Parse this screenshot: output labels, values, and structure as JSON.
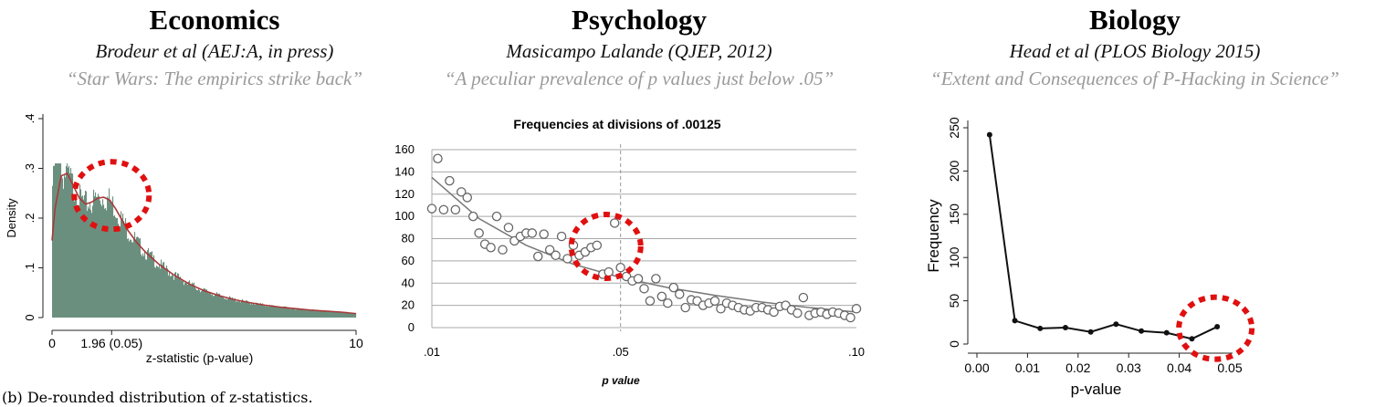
{
  "panels": [
    {
      "field": "Economics",
      "paper": "Brodeur et al (AEJ:A,  in press)",
      "quote": "“Star Wars: The empirics strike back”"
    },
    {
      "field": "Psychology",
      "paper": "Masicampo Lalande (QJEP, 2012)",
      "quote": "“A peculiar prevalence of p values just below .05”"
    },
    {
      "field": "Biology",
      "paper": "Head et al (PLOS Biology 2015)",
      "quote": "“Extent and Consequences of P-Hacking in Science”"
    }
  ],
  "colors": {
    "histogram_fill": "#6b8f7e",
    "density_line": "#a83a3a",
    "highlight": "#e01010",
    "psych_points": "#666666",
    "bio_line": "#111111",
    "quote_text": "#9a9a9a"
  },
  "chart_data": [
    {
      "type": "histogram",
      "title": "",
      "xlabel": "z-statistic (p-value)",
      "ylabel": "Density",
      "xlim": [
        0,
        10
      ],
      "ylim": [
        0,
        0.4
      ],
      "x_ticks": [
        "0",
        "1.96 (0.05)",
        "10"
      ],
      "x_tick_values": [
        0,
        1.96,
        10
      ],
      "y_ticks": [
        "0",
        ".1",
        ".2",
        ".3",
        ".4"
      ],
      "y_tick_values": [
        0,
        0.1,
        0.2,
        0.3,
        0.4
      ],
      "caption": "(b) De-rounded distribution of z-statistics.",
      "density_x": [
        0,
        0.1,
        0.3,
        0.5,
        0.7,
        0.9,
        1.1,
        1.3,
        1.5,
        1.7,
        1.9,
        2.1,
        2.3,
        2.5,
        2.8,
        3.1,
        3.5,
        4,
        4.5,
        5,
        5.5,
        6,
        6.5,
        7,
        7.5,
        8,
        8.5,
        9,
        9.5,
        10
      ],
      "density_y": [
        0.155,
        0.22,
        0.285,
        0.29,
        0.265,
        0.24,
        0.228,
        0.232,
        0.24,
        0.242,
        0.236,
        0.218,
        0.196,
        0.175,
        0.15,
        0.13,
        0.108,
        0.086,
        0.068,
        0.054,
        0.044,
        0.036,
        0.03,
        0.025,
        0.021,
        0.018,
        0.015,
        0.013,
        0.011,
        0.008
      ],
      "highlight_center": [
        1.96,
        0.24
      ]
    },
    {
      "type": "scatter",
      "title": "Frequencies at divisions of .00125",
      "xlabel": "p value",
      "ylabel": "",
      "xlim": [
        0.01,
        0.1
      ],
      "ylim": [
        0,
        160
      ],
      "x_ticks": [
        ".01",
        ".05",
        ".10"
      ],
      "x_tick_values": [
        0.01,
        0.05,
        0.1
      ],
      "y_ticks": [
        "0",
        "20",
        "40",
        "60",
        "80",
        "100",
        "120",
        "140",
        "160"
      ],
      "y_tick_values": [
        0,
        20,
        40,
        60,
        80,
        100,
        120,
        140,
        160
      ],
      "reference_line_x": 0.05,
      "x": [
        0.01,
        0.01125,
        0.0125,
        0.01375,
        0.015,
        0.01625,
        0.0175,
        0.01875,
        0.02,
        0.02125,
        0.0225,
        0.02375,
        0.025,
        0.02625,
        0.0275,
        0.02875,
        0.03,
        0.03125,
        0.0325,
        0.03375,
        0.035,
        0.03625,
        0.0375,
        0.03875,
        0.04,
        0.04125,
        0.0425,
        0.04375,
        0.045,
        0.04625,
        0.0475,
        0.04875,
        0.05,
        0.05125,
        0.0525,
        0.05375,
        0.055,
        0.05625,
        0.0575,
        0.05875,
        0.06,
        0.06125,
        0.0625,
        0.06375,
        0.065,
        0.06625,
        0.0675,
        0.06875,
        0.07,
        0.07125,
        0.0725,
        0.07375,
        0.075,
        0.07625,
        0.0775,
        0.07875,
        0.08,
        0.08125,
        0.0825,
        0.08375,
        0.085,
        0.08625,
        0.0875,
        0.08875,
        0.09,
        0.09125,
        0.0925,
        0.09375,
        0.095,
        0.09625,
        0.0975,
        0.09875,
        0.1
      ],
      "y": [
        107,
        152,
        106,
        132,
        106,
        122,
        117,
        100,
        85,
        75,
        72,
        100,
        70,
        90,
        78,
        82,
        85,
        85,
        64,
        84,
        70,
        65,
        82,
        62,
        74,
        65,
        68,
        72,
        74,
        48,
        50,
        94,
        54,
        46,
        42,
        44,
        35,
        24,
        44,
        28,
        22,
        36,
        30,
        18,
        25,
        24,
        20,
        22,
        24,
        17,
        22,
        20,
        18,
        16,
        15,
        18,
        18,
        16,
        14,
        19,
        20,
        16,
        13,
        27,
        11,
        13,
        14,
        12,
        14,
        13,
        11,
        9,
        17
      ],
      "trend_x": [
        0.01,
        0.02,
        0.03,
        0.04,
        0.05,
        0.06,
        0.07,
        0.08,
        0.09,
        0.1
      ],
      "trend_y": [
        135,
        98,
        74,
        57,
        45,
        36,
        29,
        23,
        18,
        14
      ],
      "highlight_center": [
        0.0475,
        73
      ]
    },
    {
      "type": "line",
      "title": "",
      "xlabel": "p-value",
      "ylabel": "Frequency",
      "xlim": [
        0,
        0.05
      ],
      "ylim": [
        0,
        250
      ],
      "x_ticks": [
        "0.00",
        "0.01",
        "0.02",
        "0.03",
        "0.04",
        "0.05"
      ],
      "x_tick_values": [
        0,
        0.01,
        0.02,
        0.03,
        0.04,
        0.05
      ],
      "y_ticks": [
        "0",
        "50",
        "100",
        "150",
        "200",
        "250"
      ],
      "y_tick_values": [
        0,
        50,
        100,
        150,
        200,
        250
      ],
      "x": [
        0.0025,
        0.0075,
        0.0125,
        0.0175,
        0.0225,
        0.0275,
        0.0325,
        0.0375,
        0.0425,
        0.0475
      ],
      "y": [
        242,
        27,
        18,
        19,
        14,
        23,
        15,
        13,
        6,
        20
      ],
      "highlight_center": [
        0.0475,
        13
      ]
    }
  ]
}
